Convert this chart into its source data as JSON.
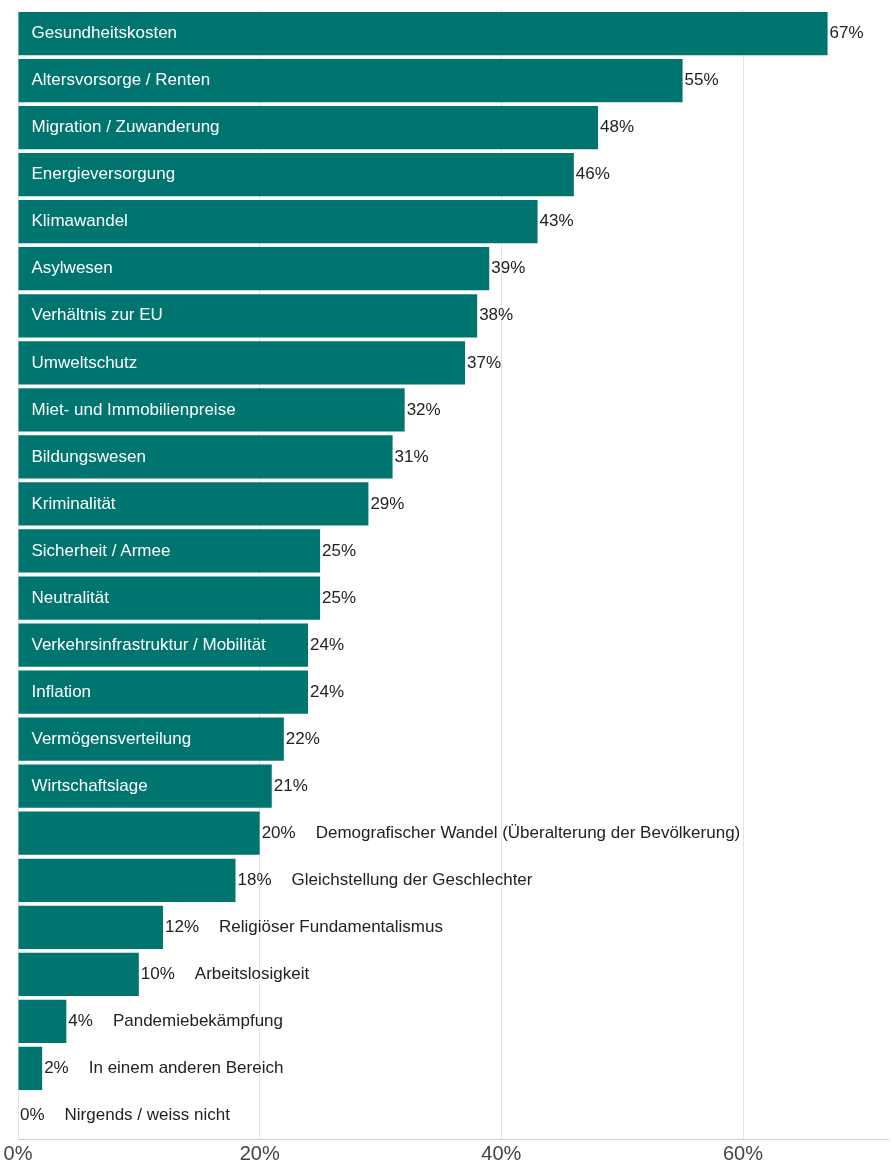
{
  "chart_data": {
    "type": "bar",
    "orientation": "horizontal",
    "categories": [
      "Gesundheitskosten",
      "Altersvorsorge / Renten",
      "Migration / Zuwanderung",
      "Energieversorgung",
      "Klimawandel",
      "Asylwesen",
      "Verhältnis zur EU",
      "Umweltschutz",
      "Miet- und Immobilienpreise",
      "Bildungswesen",
      "Kriminalität",
      "Sicherheit / Armee",
      "Neutralität",
      "Verkehrsinfrastruktur / Mobilität",
      "Inflation",
      "Vermögensverteilung",
      "Wirtschaftslage",
      "Demografischer Wandel (Überalterung der Bevölkerung)",
      "Gleichstellung der Geschlechter",
      "Religiöser Fundamentalismus",
      "Arbeitslosigkeit",
      "Pandemiebekämpfung",
      "In einem anderen Bereich",
      "Nirgends / weiss nicht"
    ],
    "values": [
      67,
      55,
      48,
      46,
      43,
      39,
      38,
      37,
      32,
      31,
      29,
      25,
      25,
      24,
      24,
      22,
      21,
      20,
      18,
      12,
      10,
      4,
      2,
      0
    ],
    "value_labels": [
      "67%",
      "55%",
      "48%",
      "46%",
      "43%",
      "39%",
      "38%",
      "37%",
      "32%",
      "31%",
      "29%",
      "25%",
      "25%",
      "24%",
      "24%",
      "22%",
      "21%",
      "20%",
      "18%",
      "12%",
      "10%",
      "4%",
      "2%",
      "0%"
    ],
    "color": "#00746f",
    "xlim": [
      0,
      72
    ],
    "xticks": [
      {
        "value": 0,
        "label": "0%"
      },
      {
        "value": 20,
        "label": "20%"
      },
      {
        "value": 40,
        "label": "40%"
      },
      {
        "value": 60,
        "label": "60%"
      }
    ],
    "grid": "x"
  }
}
